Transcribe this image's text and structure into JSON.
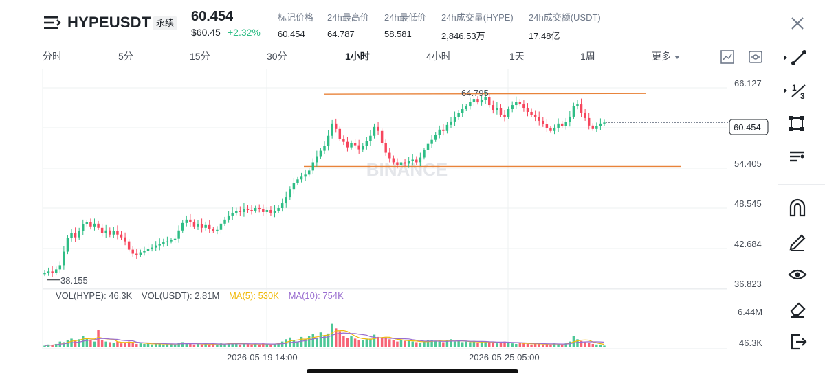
{
  "header": {
    "symbol": "HYPEUSDT",
    "contract_type": "永续",
    "last_price": "60.454",
    "usd_price": "$60.45",
    "change_pct": "+2.32%",
    "change_color": "#2ebd85",
    "stats": [
      {
        "label": "标记价格",
        "value": "60.454"
      },
      {
        "label": "24h最高价",
        "value": "64.787"
      },
      {
        "label": "24h最低价",
        "value": "58.581"
      },
      {
        "label": "24h成交量(HYPE)",
        "value": "2,846.53万"
      },
      {
        "label": "24h成交额(USDT)",
        "value": "17.48亿"
      }
    ]
  },
  "intervals": {
    "items": [
      {
        "label": "分时"
      },
      {
        "label": "5分"
      },
      {
        "label": "15分"
      },
      {
        "label": "30分"
      },
      {
        "label": "1小时"
      },
      {
        "label": "4小时"
      },
      {
        "label": "1天"
      },
      {
        "label": "1周"
      },
      {
        "label": "更多"
      }
    ],
    "active": "1小时"
  },
  "indicators": {
    "vol_base": "VOL(HYPE): 46.3K",
    "vol_quote": "VOL(USDT): 2.81M",
    "ma5": "MA(5): 530K",
    "ma10": "MA(10): 754K"
  },
  "watermark": "BINANCE",
  "chart_data": {
    "type": "candlestick",
    "price_axis_ticks": [
      "66.127",
      "60.454",
      "54.405",
      "48.545",
      "42.684",
      "36.823"
    ],
    "volume_axis_ticks": [
      "6.44M",
      "46.3K"
    ],
    "time_axis_labels": [
      "2026-05-19 14:00",
      "2026-05-25 05:00"
    ],
    "current_price": "60.454",
    "annotations": [
      {
        "text": "64.795",
        "kind": "high-marker"
      },
      {
        "text": "38.155",
        "kind": "low-marker"
      }
    ],
    "price_range": [
      36.823,
      66.127
    ],
    "volume_range": [
      0,
      6440000
    ],
    "horizontal_lines": [
      64.6,
      54.0
    ],
    "line_color": "#e8833a",
    "up_color": "#2ebd85",
    "down_color": "#f6465d",
    "ma5_color": "#f0b90b",
    "ma10_color": "#9a6ed0",
    "close_path": [
      38.4,
      38.6,
      38.4,
      38.9,
      39.5,
      41.5,
      43.5,
      44.2,
      43.6,
      44.5,
      45.5,
      45.8,
      45.2,
      45.6,
      45.0,
      44.2,
      44.6,
      44.0,
      44.5,
      44.0,
      43.6,
      43.0,
      41.8,
      41.2,
      41.0,
      41.4,
      41.6,
      41.9,
      42.1,
      42.4,
      42.6,
      42.9,
      43.0,
      43.2,
      43.4,
      44.6,
      45.7,
      46.2,
      45.8,
      45.2,
      45.5,
      45.0,
      45.4,
      44.8,
      44.5,
      44.7,
      45.6,
      46.2,
      46.8,
      47.2,
      47.5,
      47.3,
      47.8,
      47.6,
      47.5,
      47.9,
      47.7,
      47.3,
      47.6,
      47.2,
      47.5,
      47.9,
      48.6,
      49.5,
      50.6,
      51.6,
      52.1,
      52.5,
      52.8,
      53.4,
      54.6,
      55.5,
      56.3,
      57.0,
      58.5,
      60.3,
      59.5,
      58.0,
      57.6,
      56.8,
      57.4,
      57.1,
      56.5,
      57.0,
      57.7,
      58.5,
      59.8,
      59.2,
      57.4,
      56.0,
      55.2,
      54.6,
      54.2,
      54.6,
      54.4,
      54.8,
      55.0,
      54.6,
      55.3,
      56.4,
      57.3,
      57.9,
      58.6,
      59.4,
      59.2,
      60.1,
      60.6,
      61.2,
      61.8,
      62.4,
      62.8,
      63.5,
      63.9,
      63.4,
      63.8,
      64.2,
      63.0,
      62.3,
      62.6,
      61.6,
      61.2,
      62.4,
      63.0,
      63.5,
      63.1,
      62.5,
      62.0,
      61.6,
      61.2,
      60.7,
      60.2,
      59.6,
      59.2,
      59.6,
      60.3,
      59.9,
      60.5,
      61.3,
      62.9,
      63.1,
      61.9,
      61.1,
      60.0,
      59.5,
      59.9,
      60.3,
      60.454
    ],
    "volume_path_m": [
      0.3,
      0.5,
      0.4,
      0.6,
      1.0,
      0.9,
      1.3,
      1.5,
      1.1,
      1.4,
      2.0,
      1.6,
      1.2,
      1.0,
      3.0,
      1.2,
      1.0,
      0.9,
      0.8,
      1.0,
      0.7,
      0.9,
      1.0,
      0.8,
      0.6,
      0.7,
      0.6,
      0.7,
      0.5,
      0.6,
      0.7,
      0.5,
      0.6,
      0.6,
      0.5,
      0.8,
      0.9,
      0.7,
      0.6,
      0.5,
      0.6,
      0.5,
      0.7,
      0.5,
      0.6,
      0.5,
      0.7,
      0.6,
      0.8,
      0.7,
      0.6,
      0.5,
      0.7,
      0.6,
      0.5,
      0.6,
      0.5,
      0.7,
      0.6,
      0.5,
      0.6,
      0.8,
      1.0,
      1.4,
      1.7,
      1.2,
      1.0,
      1.8,
      1.4,
      2.0,
      2.3,
      1.5,
      2.6,
      1.9,
      2.4,
      4.1,
      3.3,
      2.8,
      2.0,
      1.6,
      1.9,
      1.5,
      1.3,
      1.2,
      1.4,
      1.5,
      2.2,
      1.8,
      1.6,
      1.7,
      1.4,
      1.2,
      1.0,
      1.3,
      1.1,
      1.2,
      1.0,
      0.9,
      0.8,
      1.0,
      1.2,
      1.3,
      1.1,
      1.0,
      0.9,
      1.2,
      1.4,
      1.0,
      1.1,
      0.9,
      1.0,
      0.9,
      1.1,
      0.8,
      1.0,
      0.9,
      1.0,
      0.8,
      0.7,
      0.9,
      1.0,
      0.8,
      0.7,
      0.6,
      0.8,
      0.7,
      0.6,
      0.5,
      0.6,
      0.7,
      0.5,
      0.6,
      0.5,
      0.7,
      0.6,
      0.5,
      0.7,
      1.0,
      2.0,
      1.4,
      1.1,
      0.9,
      0.8,
      0.6,
      0.5,
      0.4,
      0.3
    ]
  },
  "toolbar": {
    "icons": [
      "trendline-icon",
      "fib-icon",
      "shape-icon",
      "text-tool-icon",
      "magnet-icon",
      "pencil-icon",
      "eye-icon",
      "eraser-icon",
      "exit-icon"
    ]
  }
}
